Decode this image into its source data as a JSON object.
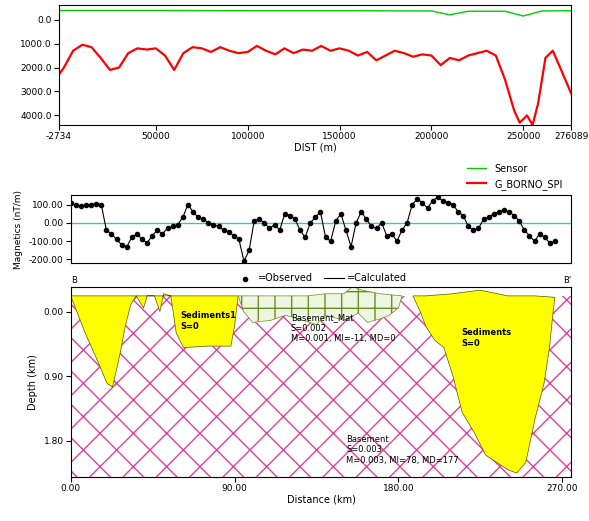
{
  "chart_data": [
    {
      "type": "line",
      "x_label": "DIST (m)",
      "xlim": [
        -2734,
        276089
      ],
      "xticks": [
        -2734,
        50000,
        100000,
        150000,
        200000,
        250000,
        276089
      ],
      "ylim": [
        4400,
        -600
      ],
      "yticks": [
        {
          "value": 0,
          "label": "0.0"
        },
        {
          "value": 1000,
          "label": "1000.0"
        },
        {
          "value": 2000,
          "label": "2000.0"
        },
        {
          "value": 3000,
          "label": "3000.0"
        },
        {
          "value": 4000,
          "label": "4000.0"
        }
      ],
      "legend": "upper right",
      "series": [
        {
          "name": "Sensor",
          "color": "#00cc00",
          "x": [
            -2734,
            50000,
            100000,
            150000,
            200000,
            210000,
            220000,
            240000,
            250000,
            260000,
            276089
          ],
          "values": [
            -380,
            -380,
            -370,
            -370,
            -360,
            -200,
            -350,
            -350,
            -150,
            -360,
            -370
          ]
        },
        {
          "name": "G_BORNO_SPI",
          "color": "#ff0000",
          "x": [
            -2734,
            0,
            5000,
            10000,
            15000,
            20000,
            25000,
            30000,
            35000,
            40000,
            45000,
            50000,
            55000,
            60000,
            65000,
            70000,
            75000,
            80000,
            85000,
            90000,
            95000,
            100000,
            105000,
            110000,
            115000,
            120000,
            125000,
            130000,
            135000,
            140000,
            145000,
            150000,
            155000,
            160000,
            165000,
            170000,
            175000,
            180000,
            185000,
            190000,
            195000,
            200000,
            205000,
            210000,
            215000,
            220000,
            225000,
            230000,
            235000,
            240000,
            245000,
            248000,
            252000,
            255000,
            258000,
            262000,
            266000,
            270000,
            276089
          ],
          "values": [
            2300,
            2000,
            1300,
            1050,
            1150,
            1600,
            2100,
            2000,
            1400,
            1200,
            1250,
            1200,
            1500,
            2100,
            1400,
            1150,
            1200,
            1350,
            1150,
            1300,
            1400,
            1350,
            1100,
            1300,
            1450,
            1200,
            1400,
            1250,
            1300,
            1100,
            1300,
            1200,
            1300,
            1500,
            1350,
            1700,
            1500,
            1300,
            1400,
            1550,
            1450,
            1500,
            1900,
            1600,
            1700,
            1500,
            1400,
            1300,
            1500,
            2500,
            3800,
            4300,
            4000,
            4400,
            3500,
            1600,
            1300,
            2000,
            3100
          ]
        }
      ]
    },
    {
      "type": "scatter",
      "y_label": "Magnetics (nT/m)",
      "xlim": [
        0,
        275
      ],
      "ylim": [
        -220,
        150
      ],
      "yticks": [
        {
          "value": -200,
          "label": "-200.00"
        },
        {
          "value": -100,
          "label": "-100.00"
        },
        {
          "value": 0,
          "label": "0.00"
        },
        {
          "value": 100,
          "label": "100.00"
        }
      ],
      "tick_labels": "y",
      "baseline": 0,
      "legend": "upper center",
      "x": [
        0,
        2.8,
        5.6,
        8.4,
        11.2,
        14,
        16.8,
        19.6,
        22.4,
        25.2,
        28,
        30.8,
        33.6,
        36.4,
        39.2,
        42,
        44.8,
        47.6,
        50.4,
        53.2,
        56,
        58.8,
        61.6,
        64.4,
        67.2,
        70,
        72.8,
        75.6,
        78.4,
        81.2,
        84,
        86.8,
        89.6,
        92.4,
        95.2,
        98,
        100.8,
        103.6,
        106.4,
        109.2,
        112,
        114.8,
        117.6,
        120.4,
        123.2,
        126,
        128.8,
        131.6,
        134.4,
        137.2,
        140,
        142.8,
        145.6,
        148.4,
        151.2,
        154,
        156.8,
        159.6,
        162.4,
        165.2,
        168,
        170.8,
        173.6,
        176.4,
        179.2,
        182,
        184.8,
        187.6,
        190.4,
        193.2,
        196,
        198.8,
        201.6,
        204.4,
        207.2,
        210,
        212.8,
        215.6,
        218.4,
        221.2,
        224,
        226.8,
        229.6,
        232.4,
        235.2,
        238,
        240.8,
        243.6,
        246.4,
        249.2,
        252,
        254.8,
        257.6,
        260.4,
        263.2,
        266
      ],
      "series": [
        {
          "name": "=Observed",
          "color": "#000000",
          "type": "scatter",
          "marker": "o",
          "values": [
            110,
            95,
            90,
            100,
            100,
            105,
            100,
            -40,
            -60,
            -90,
            -120,
            -130,
            -80,
            -60,
            -90,
            -110,
            -70,
            -40,
            -60,
            -30,
            -20,
            -10,
            30,
            100,
            60,
            30,
            20,
            0,
            -10,
            -20,
            -40,
            -50,
            -70,
            -90,
            -210,
            -150,
            10,
            20,
            0,
            -30,
            -10,
            -40,
            50,
            40,
            20,
            -40,
            -80,
            0,
            30,
            60,
            -80,
            -100,
            10,
            50,
            -40,
            -130,
            0,
            60,
            20,
            -20,
            -30,
            0,
            -70,
            -60,
            -100,
            -40,
            0,
            100,
            130,
            110,
            80,
            120,
            140,
            120,
            110,
            100,
            60,
            40,
            -20,
            -40,
            -30,
            20,
            30,
            50,
            60,
            70,
            60,
            40,
            10,
            -40,
            -70,
            -100,
            -60,
            -80,
            -110,
            -100
          ]
        },
        {
          "name": "=Calculated",
          "color": "#000000",
          "type": "line",
          "line_style": "solid",
          "values": [
            110,
            95,
            90,
            100,
            100,
            105,
            100,
            -40,
            -60,
            -90,
            -120,
            -130,
            -80,
            -60,
            -90,
            -110,
            -70,
            -40,
            -60,
            -30,
            -20,
            -10,
            30,
            100,
            60,
            30,
            20,
            0,
            -10,
            -20,
            -40,
            -50,
            -70,
            -90,
            -210,
            -150,
            10,
            20,
            0,
            -30,
            -10,
            -40,
            50,
            40,
            20,
            -40,
            -80,
            0,
            30,
            60,
            -80,
            -100,
            10,
            50,
            -40,
            -130,
            0,
            60,
            20,
            -20,
            -30,
            0,
            -70,
            -60,
            -100,
            -40,
            0,
            100,
            130,
            110,
            80,
            120,
            140,
            120,
            110,
            100,
            60,
            40,
            -20,
            -40,
            -30,
            20,
            30,
            50,
            60,
            70,
            60,
            40,
            10,
            -40,
            -70,
            -100,
            -60,
            -80,
            -110,
            -100
          ]
        }
      ]
    },
    {
      "type": "section",
      "x_label": "Distance (km)",
      "y_label": "Depth (km)",
      "xlim": [
        0,
        275
      ],
      "xticks": [
        {
          "value": 0,
          "label": "0.00"
        },
        {
          "value": 90,
          "label": "90.00"
        },
        {
          "value": 180,
          "label": "180.00"
        },
        {
          "value": 270,
          "label": "270.00"
        }
      ],
      "ylim": [
        2.3,
        -0.35
      ],
      "yticks": [
        {
          "value": 0,
          "label": "0.00"
        },
        {
          "value": 0.9,
          "label": "0.90"
        },
        {
          "value": 1.8,
          "label": "1.80"
        }
      ],
      "annotations": [
        "B",
        "B'"
      ],
      "bodies": [
        {
          "name": "Basement",
          "properties": [
            "S=0.003",
            "M=0.003, MI=78, MD=177"
          ],
          "color": "#e0409a",
          "x": [
            0,
            275,
            275,
            0
          ],
          "y": [
            -0.22,
            -0.22,
            2.3,
            2.3
          ]
        },
        {
          "name": "Sediments1",
          "properties": [
            "S=0"
          ],
          "color": "#ffff00",
          "x": [
            0,
            8,
            15,
            20,
            23,
            27,
            30,
            33,
            36,
            40,
            42,
            46,
            49,
            51,
            55,
            58,
            62,
            75,
            88,
            90,
            92
          ],
          "y": [
            -0.22,
            0.3,
            0.7,
            1.0,
            1.05,
            0.6,
            0.2,
            -0.1,
            -0.22,
            -0.05,
            -0.22,
            -0.22,
            0.0,
            -0.25,
            -0.22,
            0.3,
            0.5,
            0.48,
            0.48,
            0.2,
            -0.22
          ]
        },
        {
          "name": "Basement_Mat",
          "properties": [
            "S=0.002",
            "M=0.001, MI=-11, MD=0"
          ],
          "color": "#6b8e23",
          "x": [
            92,
            95,
            100,
            110,
            118,
            125,
            135,
            140,
            150,
            158,
            163,
            170,
            175,
            180,
            182,
            170,
            160,
            155,
            150,
            140,
            130,
            110
          ],
          "y": [
            -0.22,
            0.0,
            0.15,
            0.12,
            0.05,
            0.1,
            0.18,
            0.05,
            0.12,
            0.02,
            0.15,
            0.1,
            0.05,
            -0.05,
            -0.22,
            -0.25,
            -0.3,
            -0.35,
            -0.25,
            -0.25,
            -0.22,
            -0.22
          ]
        },
        {
          "name": "Sediments",
          "properties": [
            "S=0"
          ],
          "color": "#ffff00",
          "x": [
            188,
            192,
            195,
            200,
            205,
            210,
            215,
            222,
            228,
            240,
            245,
            250,
            255,
            260,
            263,
            265,
            266,
            255,
            240,
            225,
            210,
            195
          ],
          "y": [
            -0.22,
            0.0,
            0.2,
            0.4,
            0.5,
            0.9,
            1.4,
            1.7,
            2.0,
            2.2,
            2.25,
            2.1,
            1.5,
            1.0,
            0.5,
            0.0,
            -0.2,
            -0.22,
            -0.22,
            -0.3,
            -0.25,
            -0.22
          ]
        }
      ]
    }
  ]
}
